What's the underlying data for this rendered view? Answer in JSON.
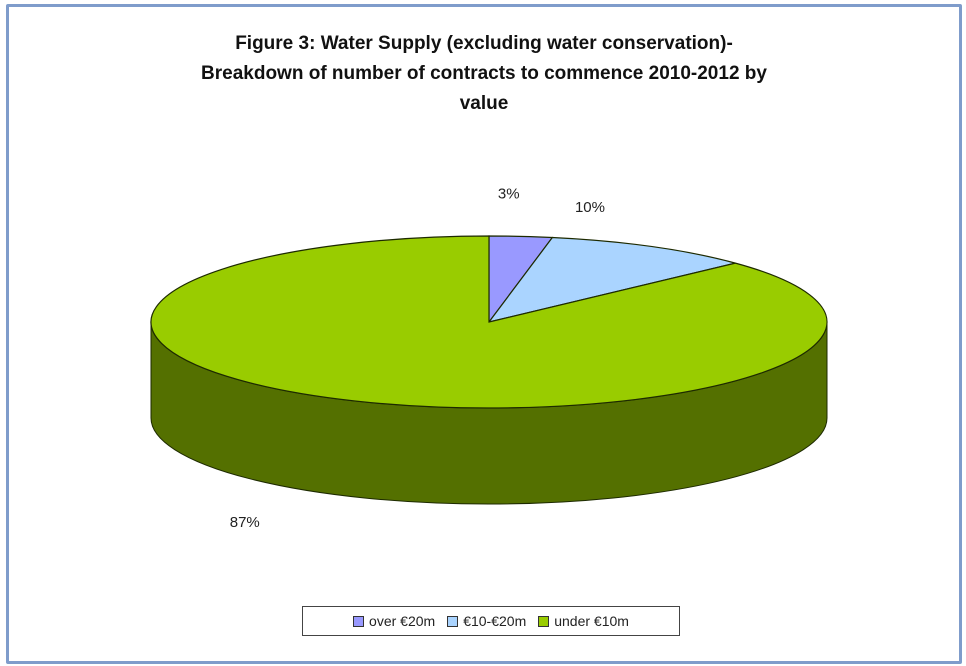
{
  "chart_data": {
    "type": "pie",
    "title_lines": [
      "Figure 3:  Water Supply  (excluding water conservation)-",
      "Breakdown of number of contracts to commence 2010-2012 by",
      "value"
    ],
    "slices": [
      {
        "label": "over €20m",
        "value": 3,
        "display": "3%",
        "color": "#9999ff"
      },
      {
        "label": "€10-€20m",
        "value": 10,
        "display": "10%",
        "color": "#aad4ff"
      },
      {
        "label": "under €10m",
        "value": 87,
        "display": "87%",
        "color": "#99cc00"
      }
    ],
    "style": "3d",
    "legend_position": "bottom"
  }
}
